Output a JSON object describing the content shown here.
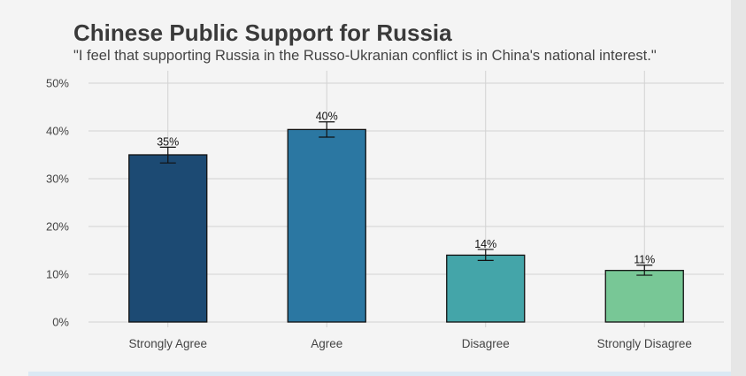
{
  "title": "Chinese Public Support for Russia",
  "subtitle": "\"I feel that supporting Russia in the Russo-Ukranian conflict is in China's national interest.\"",
  "chart_data": {
    "type": "bar",
    "title": "Chinese Public Support for Russia",
    "subtitle": "\"I feel that supporting Russia in the Russo-Ukranian conflict is in China's national interest.\"",
    "categories": [
      "Strongly Agree",
      "Agree",
      "Disagree",
      "Strongly Disagree"
    ],
    "values": [
      35,
      40.3,
      14,
      10.8
    ],
    "error_low": [
      33.3,
      38.7,
      12.9,
      9.8
    ],
    "error_high": [
      36.6,
      41.9,
      15.2,
      11.9
    ],
    "data_labels": [
      "35%",
      "40%",
      "14%",
      "11%"
    ],
    "ylim": [
      0,
      50
    ],
    "yticks": [
      0,
      10,
      20,
      30,
      40,
      50
    ],
    "ytick_labels": [
      "0%",
      "10%",
      "20%",
      "30%",
      "40%",
      "50%"
    ],
    "colors": [
      "#1c4a73",
      "#2b77a2",
      "#44a5a9",
      "#78c796"
    ],
    "grid": true,
    "legend": "none"
  }
}
